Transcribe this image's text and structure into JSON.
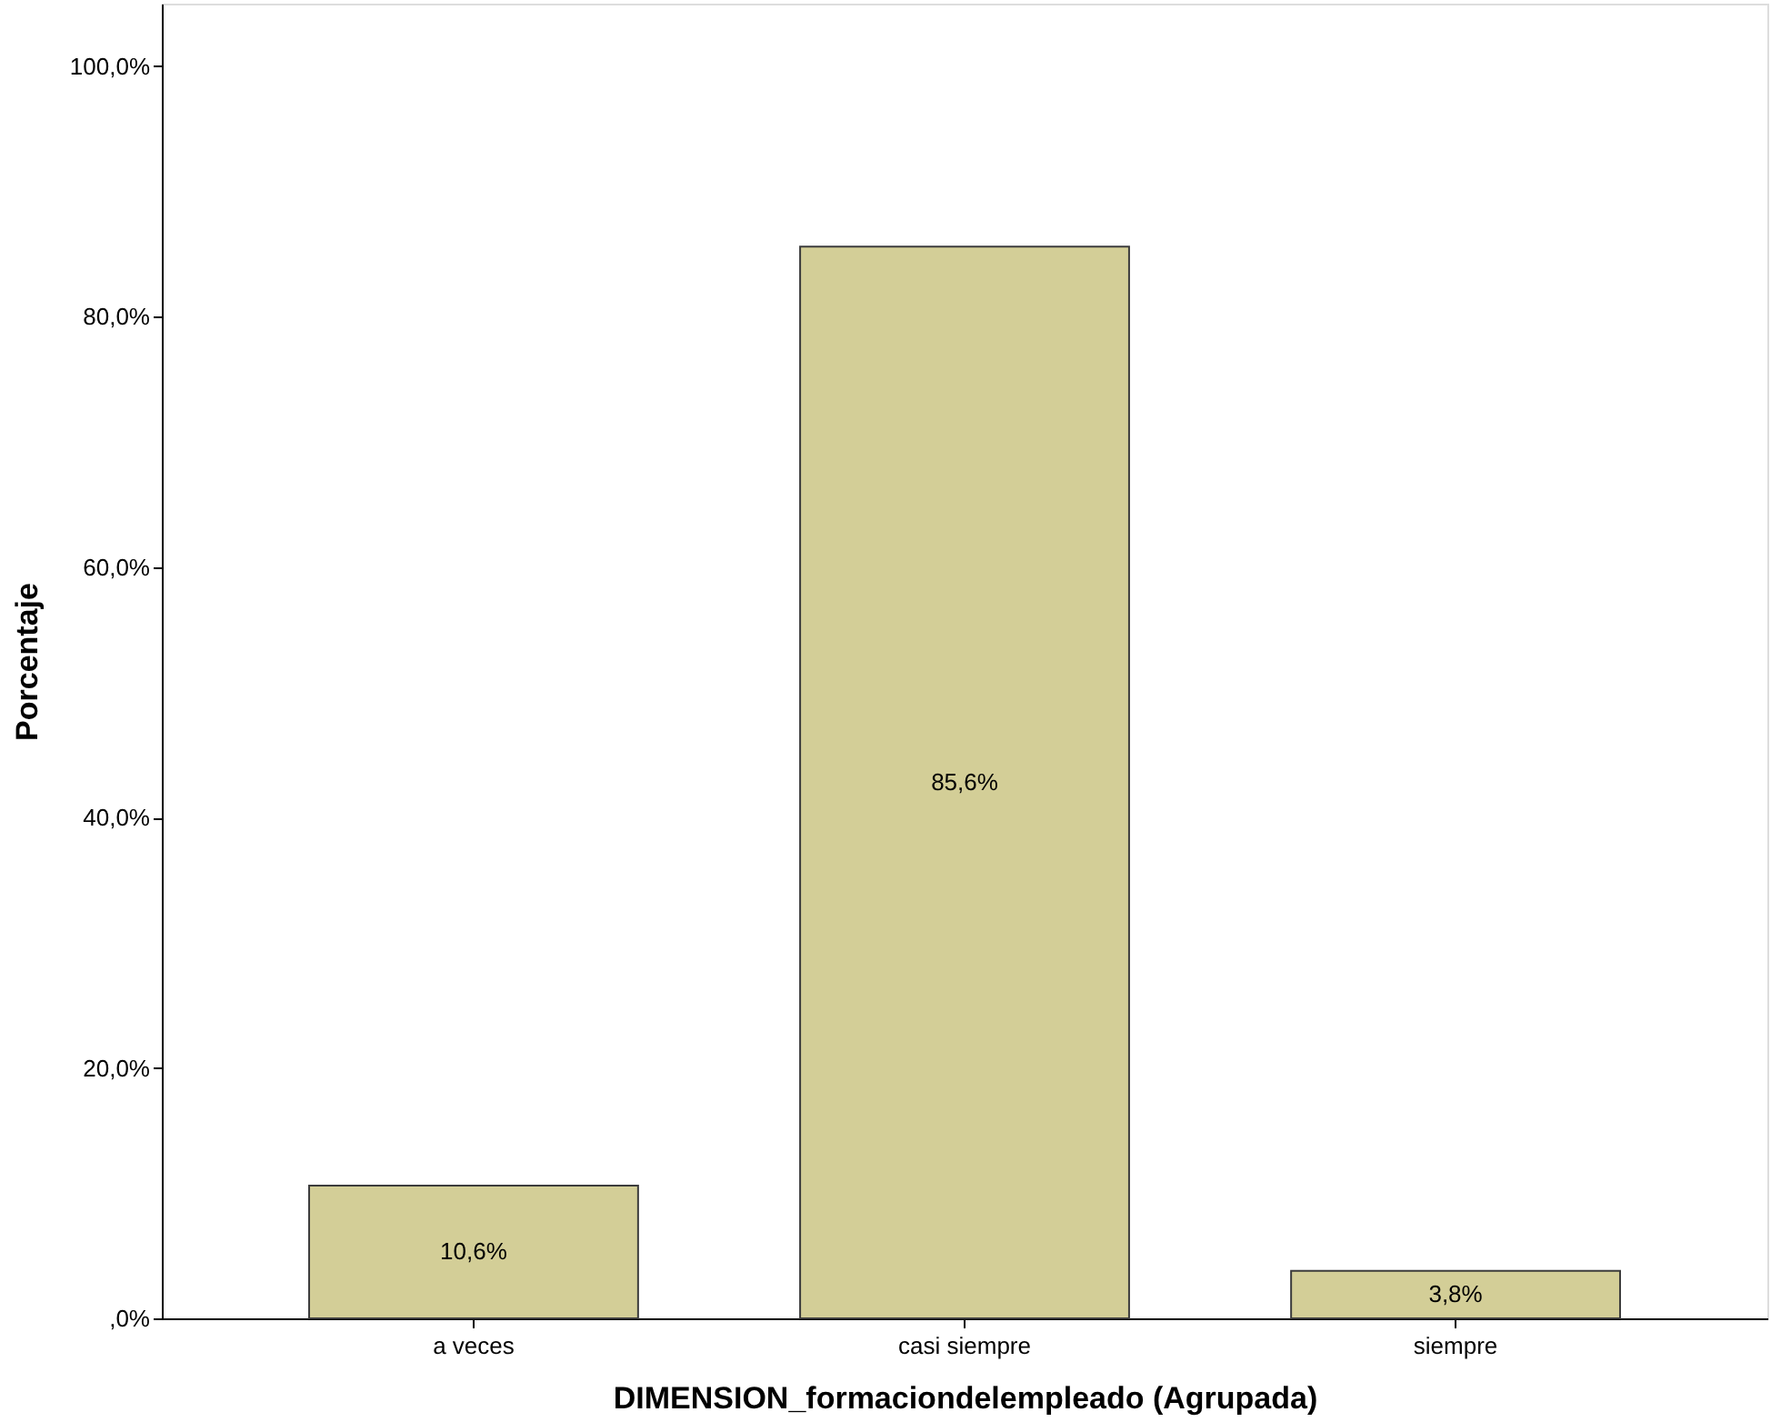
{
  "chart_data": {
    "type": "bar",
    "xlabel": "DIMENSION_formaciondelempleado (Agrupada)",
    "ylabel": "Porcentaje",
    "categories": [
      "a veces",
      "casi siempre",
      "siempre"
    ],
    "values": [
      10.6,
      85.6,
      3.8
    ],
    "value_labels": [
      "10,6%",
      "85,6%",
      "3,8%"
    ],
    "color": "#d3ce97",
    "ylim": [
      0,
      105
    ],
    "yticks": [
      {
        "value": 0,
        "label": ",0%"
      },
      {
        "value": 20,
        "label": "20,0%"
      },
      {
        "value": 40,
        "label": "40,0%"
      },
      {
        "value": 60,
        "label": "60,0%"
      },
      {
        "value": 80,
        "label": "80,0%"
      },
      {
        "value": 100,
        "label": "100,0%"
      }
    ],
    "grid": false
  }
}
